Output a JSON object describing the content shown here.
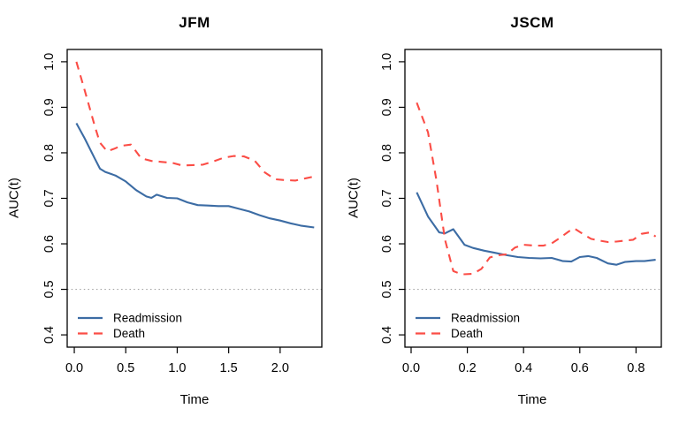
{
  "figure": {
    "background": "#ffffff",
    "text_color": "#000000"
  },
  "chart_data": [
    {
      "type": "line",
      "title": "JFM",
      "xlabel": "Time",
      "ylabel": "AUC(t)",
      "xlim": [
        -0.069,
        2.405
      ],
      "ylim": [
        0.373,
        1.027
      ],
      "x_ticks": [
        0.0,
        0.5,
        1.0,
        1.5,
        2.0
      ],
      "x_tick_labels": [
        "0.0",
        "0.5",
        "1.0",
        "1.5",
        "2.0"
      ],
      "y_ticks": [
        0.4,
        0.5,
        0.6,
        0.7,
        0.8,
        0.9,
        1.0
      ],
      "y_tick_labels": [
        "0.4",
        "0.5",
        "0.6",
        "0.7",
        "0.8",
        "0.9",
        "1.0"
      ],
      "grid": false,
      "reference_line": {
        "y": 0.5,
        "style": "dotted",
        "color": "#a3a3a3"
      },
      "legend": {
        "position": "bottom-left",
        "items": [
          "Readmission",
          "Death"
        ]
      },
      "series": [
        {
          "name": "Readmission",
          "color": "#3C6CA4",
          "dash": "solid",
          "x": [
            0.02,
            0.1,
            0.2,
            0.25,
            0.3,
            0.4,
            0.5,
            0.6,
            0.7,
            0.75,
            0.8,
            0.9,
            1.0,
            1.1,
            1.2,
            1.3,
            1.4,
            1.5,
            1.6,
            1.7,
            1.8,
            1.9,
            2.0,
            2.1,
            2.2,
            2.33
          ],
          "y": [
            0.865,
            0.832,
            0.787,
            0.765,
            0.758,
            0.75,
            0.737,
            0.718,
            0.704,
            0.701,
            0.708,
            0.701,
            0.7,
            0.691,
            0.685,
            0.684,
            0.683,
            0.683,
            0.677,
            0.671,
            0.663,
            0.656,
            0.651,
            0.645,
            0.64,
            0.636
          ]
        },
        {
          "name": "Death",
          "color": "#FB4D46",
          "dash": "dashed",
          "x": [
            0.02,
            0.1,
            0.2,
            0.25,
            0.32,
            0.4,
            0.45,
            0.55,
            0.65,
            0.75,
            0.85,
            0.95,
            1.05,
            1.15,
            1.25,
            1.35,
            1.45,
            1.55,
            1.65,
            1.75,
            1.85,
            1.95,
            2.05,
            2.15,
            2.25,
            2.33
          ],
          "y": [
            1.0,
            0.938,
            0.858,
            0.822,
            0.803,
            0.81,
            0.815,
            0.818,
            0.788,
            0.782,
            0.78,
            0.778,
            0.772,
            0.773,
            0.774,
            0.781,
            0.789,
            0.793,
            0.792,
            0.783,
            0.757,
            0.742,
            0.74,
            0.739,
            0.744,
            0.748
          ]
        }
      ]
    },
    {
      "type": "line",
      "title": "JSCM",
      "xlabel": "Time",
      "ylabel": "AUC(t)",
      "xlim": [
        -0.022,
        0.89
      ],
      "ylim": [
        0.373,
        1.027
      ],
      "x_ticks": [
        0.0,
        0.2,
        0.4,
        0.6,
        0.8
      ],
      "x_tick_labels": [
        "0.0",
        "0.2",
        "0.4",
        "0.6",
        "0.8"
      ],
      "y_ticks": [
        0.4,
        0.5,
        0.6,
        0.7,
        0.8,
        0.9,
        1.0
      ],
      "y_tick_labels": [
        "0.4",
        "0.5",
        "0.6",
        "0.7",
        "0.8",
        "0.9",
        "1.0"
      ],
      "grid": false,
      "reference_line": {
        "y": 0.5,
        "style": "dotted",
        "color": "#a3a3a3"
      },
      "legend": {
        "position": "bottom-left",
        "items": [
          "Readmission",
          "Death"
        ]
      },
      "series": [
        {
          "name": "Readmission",
          "color": "#3C6CA4",
          "dash": "solid",
          "x": [
            0.02,
            0.06,
            0.1,
            0.12,
            0.15,
            0.19,
            0.22,
            0.26,
            0.3,
            0.34,
            0.38,
            0.42,
            0.46,
            0.5,
            0.54,
            0.57,
            0.6,
            0.63,
            0.66,
            0.7,
            0.73,
            0.76,
            0.8,
            0.83,
            0.87
          ],
          "y": [
            0.713,
            0.66,
            0.625,
            0.623,
            0.632,
            0.598,
            0.591,
            0.585,
            0.58,
            0.575,
            0.571,
            0.569,
            0.568,
            0.569,
            0.562,
            0.561,
            0.571,
            0.573,
            0.569,
            0.557,
            0.554,
            0.56,
            0.562,
            0.562,
            0.565
          ]
        },
        {
          "name": "Death",
          "color": "#FB4D46",
          "dash": "dashed",
          "x": [
            0.02,
            0.06,
            0.09,
            0.12,
            0.15,
            0.18,
            0.22,
            0.25,
            0.28,
            0.31,
            0.34,
            0.37,
            0.4,
            0.44,
            0.47,
            0.5,
            0.53,
            0.56,
            0.58,
            0.61,
            0.64,
            0.67,
            0.7,
            0.73,
            0.76,
            0.79,
            0.82,
            0.85,
            0.87
          ],
          "y": [
            0.91,
            0.845,
            0.74,
            0.61,
            0.54,
            0.533,
            0.534,
            0.545,
            0.57,
            0.575,
            0.577,
            0.592,
            0.598,
            0.596,
            0.596,
            0.601,
            0.613,
            0.627,
            0.634,
            0.622,
            0.611,
            0.607,
            0.604,
            0.605,
            0.607,
            0.609,
            0.622,
            0.625,
            0.616
          ]
        }
      ]
    }
  ]
}
